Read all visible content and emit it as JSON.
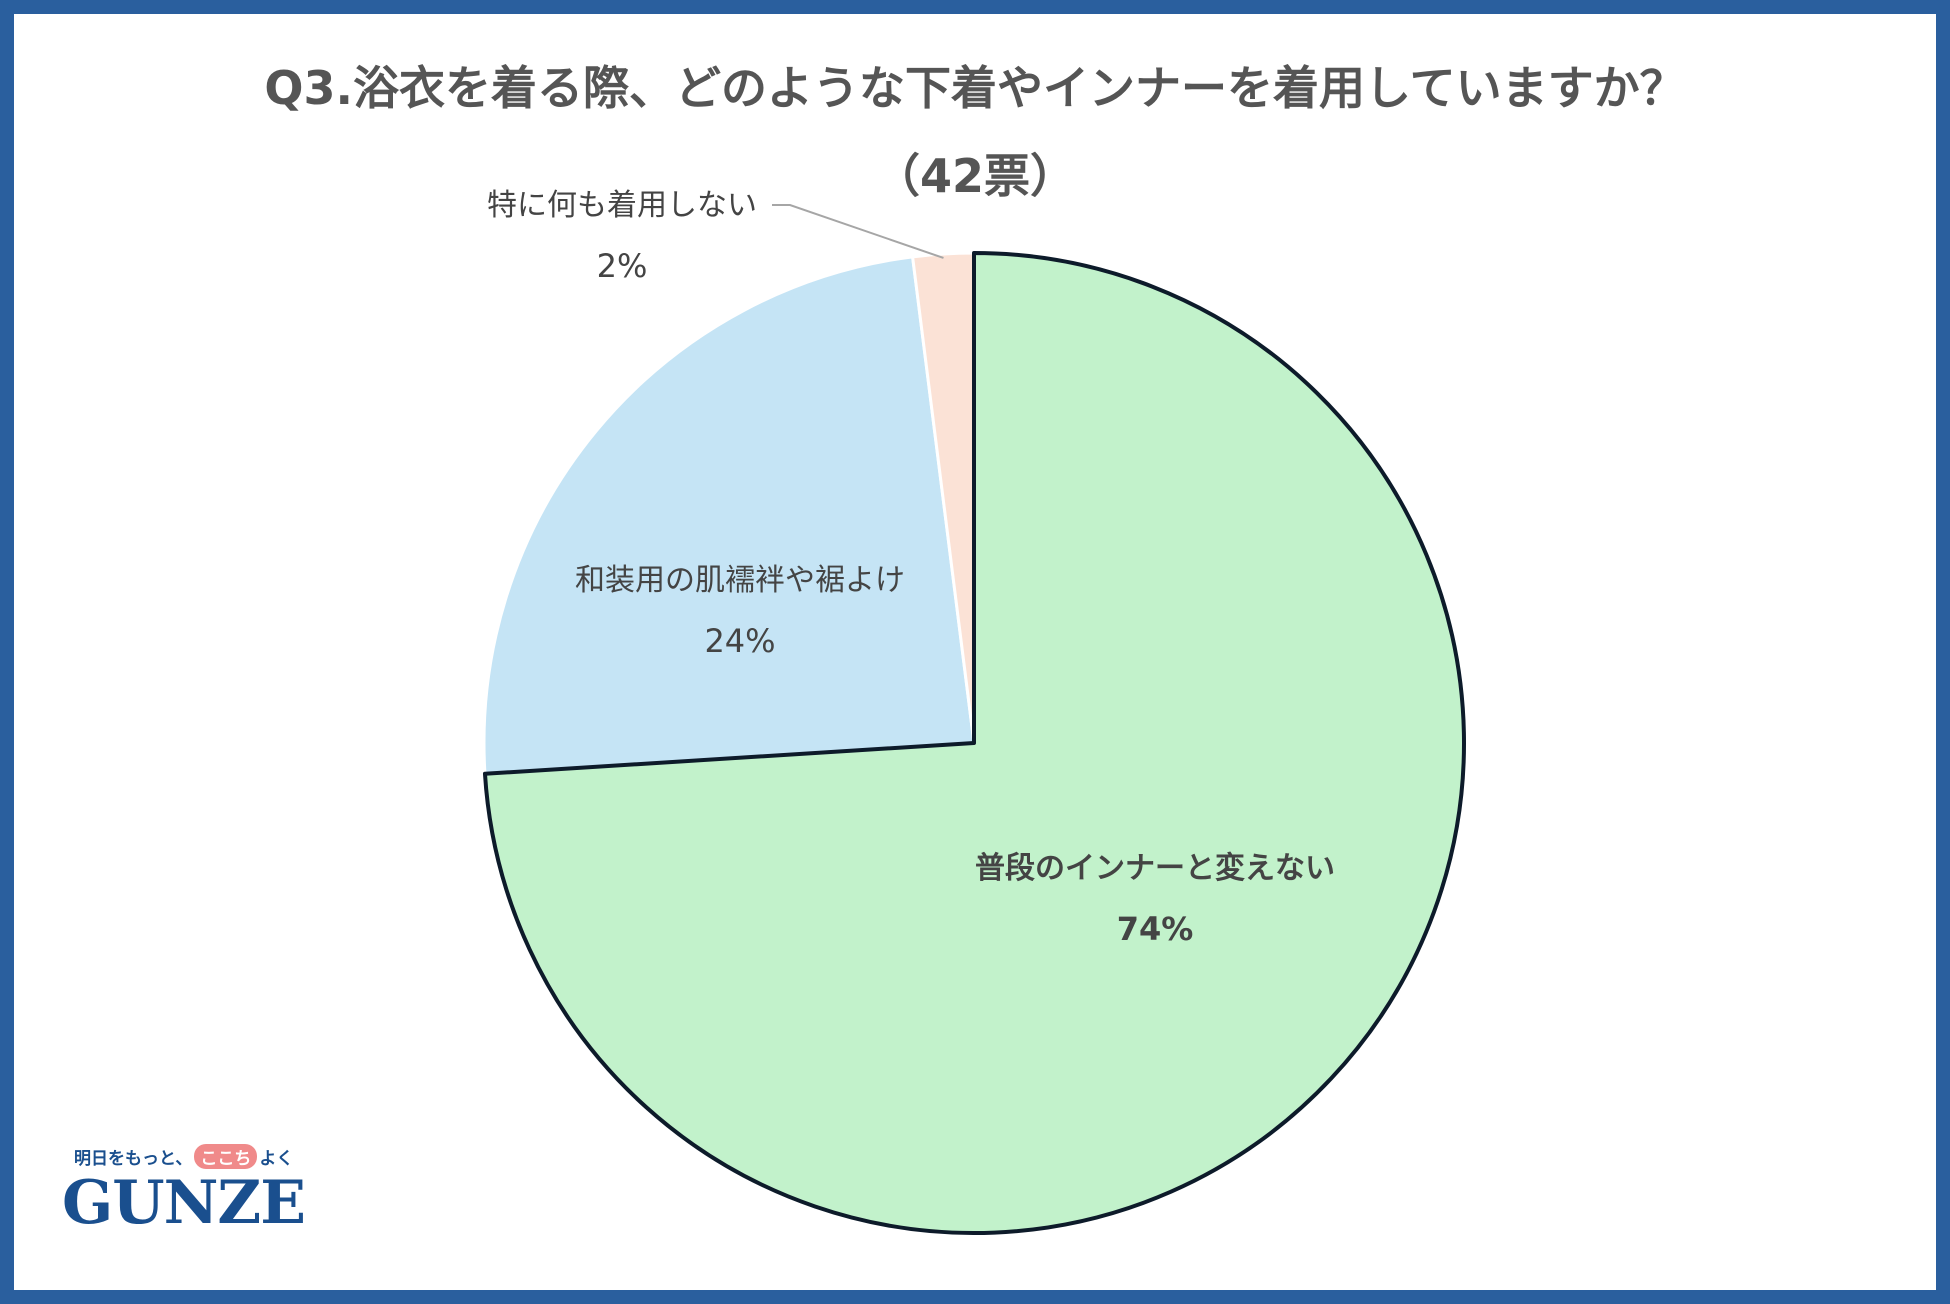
{
  "chart_data": {
    "type": "pie",
    "title_line1": "Q3.浴衣を着る際、どのような下着やインナーを着用していますか？",
    "title_line2": "（42票）",
    "slices": [
      {
        "label": "普段のインナーと変えない",
        "value": 74,
        "value_label": "74%",
        "color": "#c2f2cb"
      },
      {
        "label": "和装用の肌襦袢や裾よけ",
        "value": 24,
        "value_label": "24%",
        "color": "#c5e4f5"
      },
      {
        "label": "特に何も着用しない",
        "value": 2,
        "value_label": "2%",
        "color": "#fbe2d6"
      }
    ],
    "highlighted_slice": 0
  },
  "logo": {
    "tagline_before": "明日をもっと、",
    "tagline_highlight": "ここち",
    "tagline_after": "よく",
    "brand": "GUNZE",
    "brand_color": "#1a4f8e"
  }
}
